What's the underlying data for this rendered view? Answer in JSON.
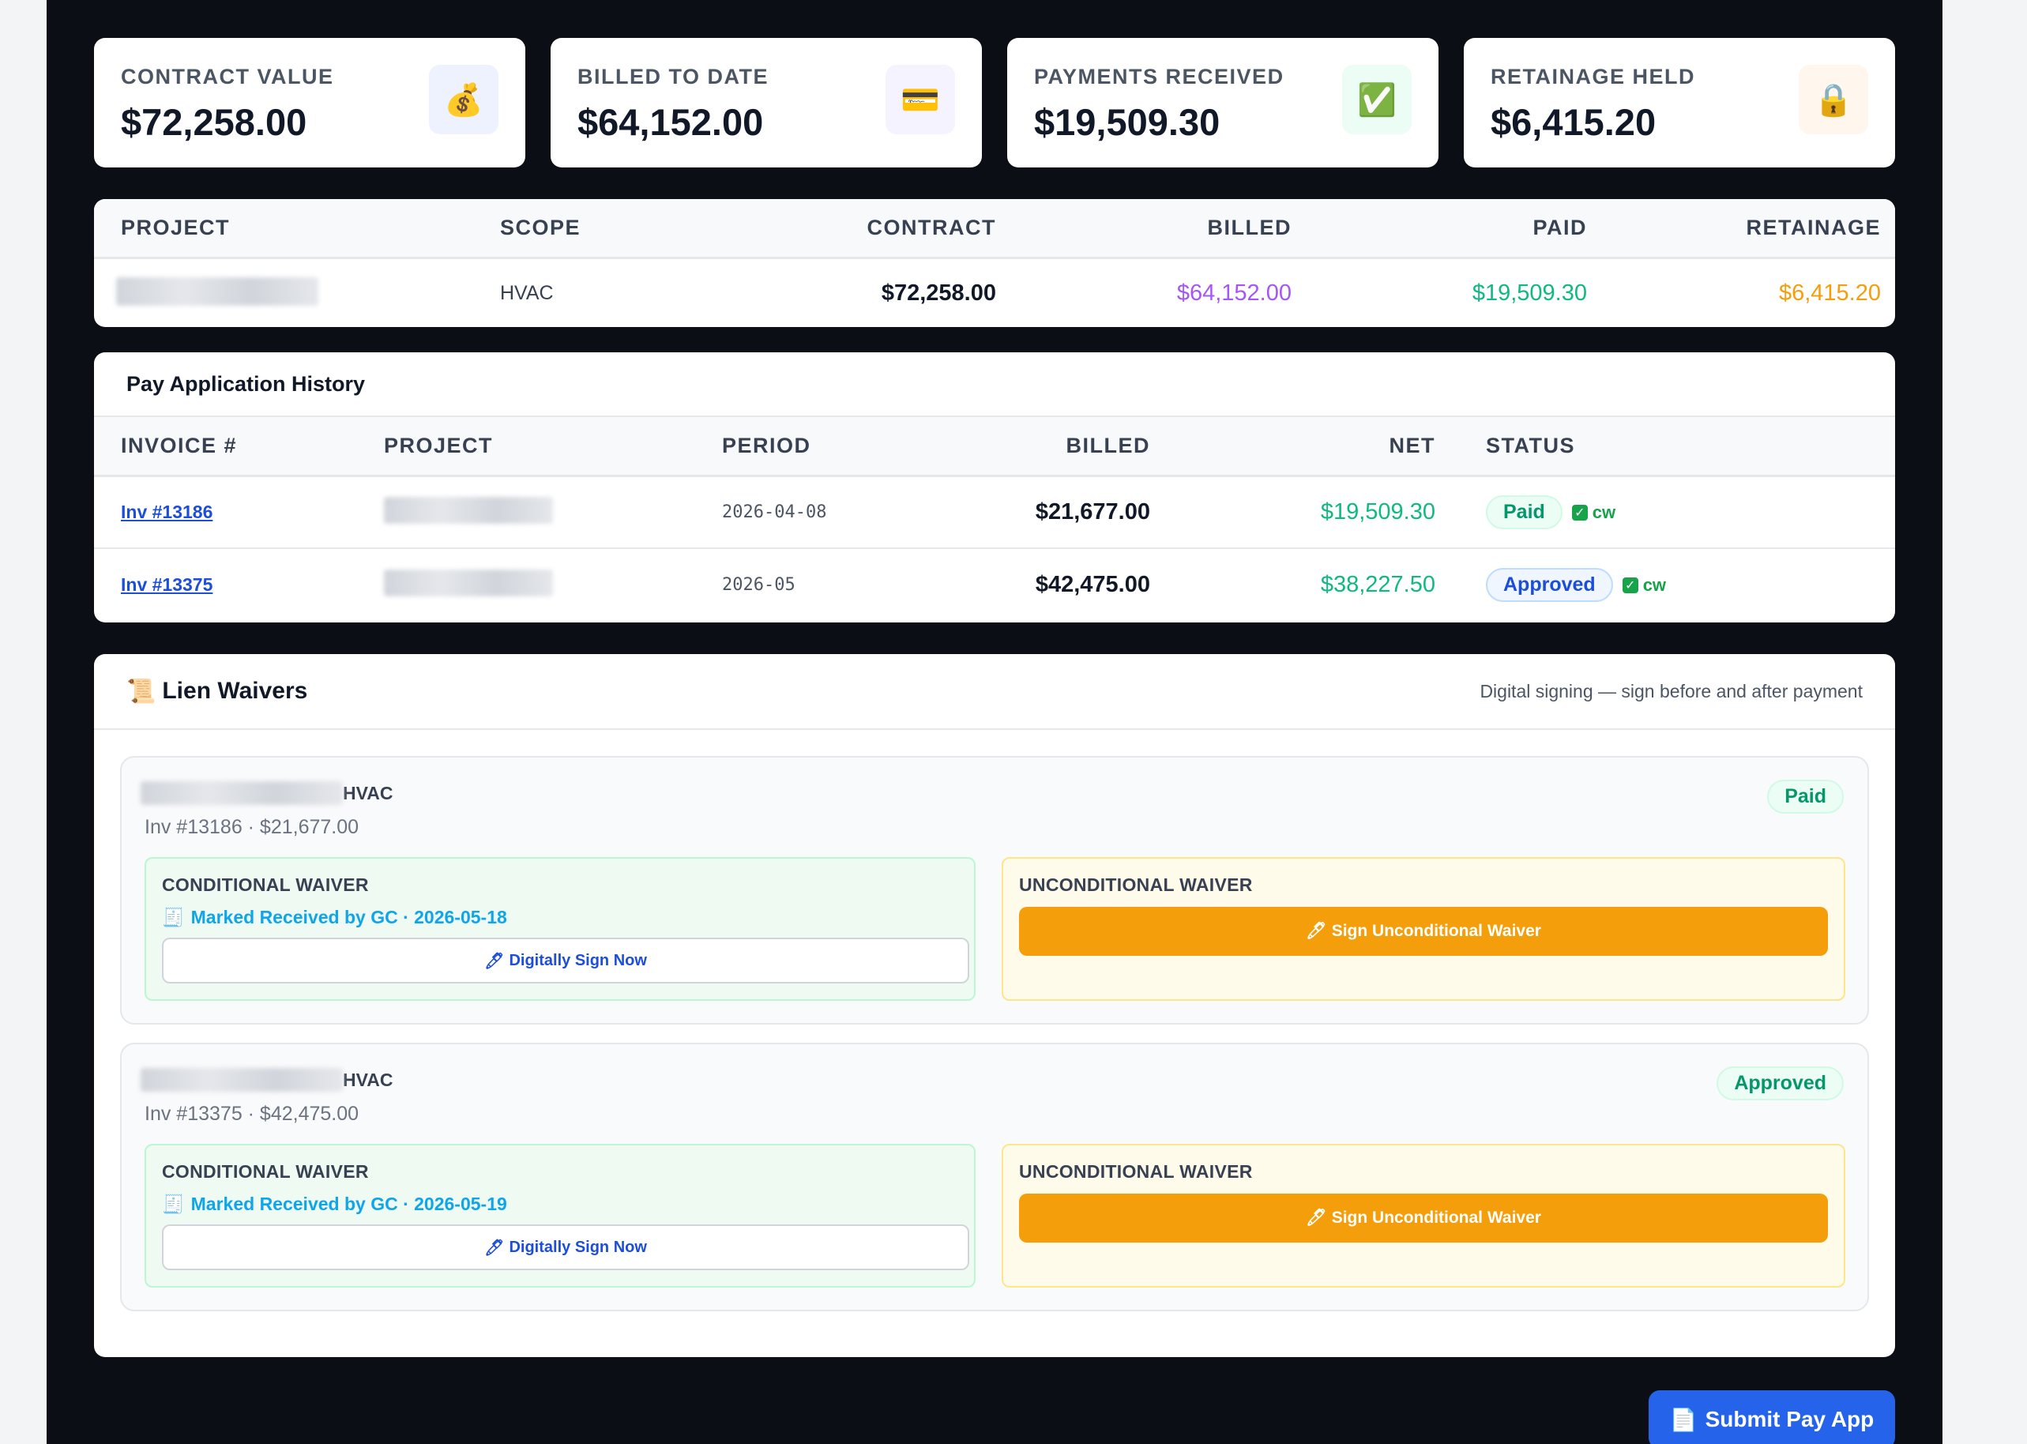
{
  "stats": [
    {
      "label": "CONTRACT VALUE",
      "value": "$72,258.00",
      "icon": "money-bag-icon",
      "glyph": "💰",
      "icon_bg": "#eef2ff"
    },
    {
      "label": "BILLED TO DATE",
      "value": "$64,152.00",
      "icon": "credit-card-icon",
      "glyph": "💳",
      "icon_bg": "#f5f3ff"
    },
    {
      "label": "PAYMENTS RECEIVED",
      "value": "$19,509.30",
      "icon": "check-mark-icon",
      "glyph": "✅",
      "icon_bg": "#ecfdf5"
    },
    {
      "label": "RETAINAGE HELD",
      "value": "$6,415.20",
      "icon": "lock-icon",
      "glyph": "🔒",
      "icon_bg": "#fff7ed"
    }
  ],
  "summary": {
    "headers": [
      "PROJECT",
      "SCOPE",
      "CONTRACT",
      "BILLED",
      "PAID",
      "RETAINAGE"
    ],
    "row": {
      "scope": "HVAC",
      "contract": "$72,258.00",
      "billed": "$64,152.00",
      "paid": "$19,509.30",
      "retainage": "$6,415.20"
    }
  },
  "history": {
    "title": "Pay Application History",
    "headers": [
      "INVOICE #",
      "PROJECT",
      "PERIOD",
      "BILLED",
      "NET",
      "STATUS"
    ],
    "rows": [
      {
        "invoice": "Inv #13186",
        "period": "2026-04-08",
        "billed": "$21,677.00",
        "net": "$19,509.30",
        "status": "Paid",
        "cw": "cw"
      },
      {
        "invoice": "Inv #13375",
        "period": "2026-05",
        "billed": "$42,475.00",
        "net": "$38,227.50",
        "status": "Approved",
        "cw": "cw"
      }
    ]
  },
  "waivers": {
    "title": "Lien Waivers",
    "subtitle": "Digital signing — sign before and after payment",
    "items": [
      {
        "scope": "HVAC",
        "invoice_line": "Inv #13186 · $21,677.00",
        "status": "Paid",
        "conditional_title": "CONDITIONAL WAIVER",
        "marked": "Marked Received by GC · 2026-05-18",
        "sign_now": "Digitally Sign Now",
        "unconditional_title": "UNCONDITIONAL WAIVER",
        "sign_uncond": "Sign Unconditional Waiver"
      },
      {
        "scope": "HVAC",
        "invoice_line": "Inv #13375 · $42,475.00",
        "status": "Approved",
        "conditional_title": "CONDITIONAL WAIVER",
        "marked": "Marked Received by GC · 2026-05-19",
        "sign_now": "Digitally Sign Now",
        "unconditional_title": "UNCONDITIONAL WAIVER",
        "sign_uncond": "Sign Unconditional Waiver"
      }
    ]
  },
  "submit_label": "Submit Pay App",
  "colors": {
    "billed": "#a855f7",
    "paid": "#10b981",
    "retainage": "#f59e0b",
    "primary": "#2563eb",
    "amber": "#f59e0b"
  }
}
